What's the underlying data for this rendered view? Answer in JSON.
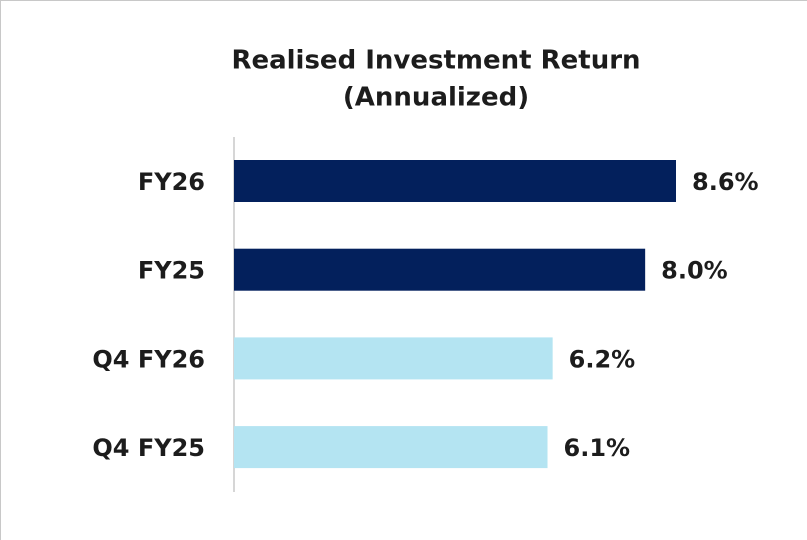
{
  "chart_data": {
    "type": "barh",
    "title": [
      "Realised Investment Return",
      "(Annualized)"
    ],
    "categories": [
      "FY26",
      "FY25",
      "Q4 FY26",
      "Q4 FY25"
    ],
    "values": [
      8.6,
      8.0,
      6.2,
      6.1
    ],
    "value_labels": [
      "8.6%",
      "8.0%",
      "6.2%",
      "6.1%"
    ],
    "colors": [
      "#03205c",
      "#03205c",
      "#b4e4f2",
      "#b4e4f2"
    ]
  }
}
